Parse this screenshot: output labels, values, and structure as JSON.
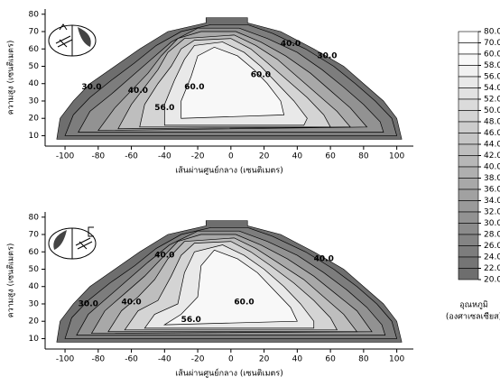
{
  "chart_data": [
    {
      "type": "contour",
      "x_label": "เส้นผ่านศูนย์กลาง (เซนติเมตร)",
      "y_label": "ความสูง (เซนติเมตร)",
      "xlim": [
        -112,
        110
      ],
      "ylim": [
        4,
        83
      ],
      "xticks": [
        -100,
        -80,
        -60,
        -40,
        -20,
        0,
        20,
        40,
        60,
        80,
        100
      ],
      "yticks": [
        10,
        20,
        30,
        40,
        50,
        60,
        70,
        80
      ],
      "boundary": [
        [
          -105,
          8
        ],
        [
          -103,
          20
        ],
        [
          -95,
          30
        ],
        [
          -85,
          40
        ],
        [
          -70,
          50
        ],
        [
          -55,
          60
        ],
        [
          -38,
          70
        ],
        [
          -15,
          75
        ],
        [
          -15,
          78
        ],
        [
          10,
          78
        ],
        [
          10,
          75
        ],
        [
          30,
          70
        ],
        [
          50,
          60
        ],
        [
          68,
          50
        ],
        [
          80,
          40
        ],
        [
          92,
          30
        ],
        [
          100,
          20
        ],
        [
          103,
          8
        ]
      ],
      "contours": [
        {
          "level": 24,
          "points": [
            [
              -100,
              10
            ],
            [
              -95,
              22
            ],
            [
              -85,
              32
            ],
            [
              -72,
              42
            ],
            [
              -58,
              52
            ],
            [
              -45,
              62
            ],
            [
              -30,
              70
            ],
            [
              -12,
              74
            ],
            [
              10,
              74
            ],
            [
              25,
              69
            ],
            [
              45,
              60
            ],
            [
              62,
              50
            ],
            [
              75,
              40
            ],
            [
              87,
              30
            ],
            [
              97,
              20
            ],
            [
              100,
              10
            ]
          ]
        },
        {
          "level": 30,
          "points": [
            [
              -92,
              12
            ],
            [
              -85,
              24
            ],
            [
              -72,
              34
            ],
            [
              -60,
              44
            ],
            [
              -48,
              54
            ],
            [
              -36,
              64
            ],
            [
              -20,
              72
            ],
            [
              5,
              72
            ],
            [
              22,
              66
            ],
            [
              40,
              58
            ],
            [
              55,
              48
            ],
            [
              68,
              38
            ],
            [
              80,
              28
            ],
            [
              90,
              18
            ],
            [
              92,
              12
            ]
          ]
        },
        {
          "level": 36,
          "points": [
            [
              -80,
              13
            ],
            [
              -70,
              26
            ],
            [
              -60,
              36
            ],
            [
              -50,
              46
            ],
            [
              -42,
              56
            ],
            [
              -32,
              66
            ],
            [
              -18,
              70
            ],
            [
              3,
              70
            ],
            [
              18,
              64
            ],
            [
              33,
              56
            ],
            [
              48,
              46
            ],
            [
              60,
              36
            ],
            [
              72,
              26
            ],
            [
              82,
              15
            ]
          ]
        },
        {
          "level": 42,
          "points": [
            [
              -68,
              14
            ],
            [
              -60,
              28
            ],
            [
              -52,
              38
            ],
            [
              -44,
              48
            ],
            [
              -38,
              58
            ],
            [
              -28,
              66
            ],
            [
              2,
              68
            ],
            [
              15,
              62
            ],
            [
              28,
              54
            ],
            [
              40,
              44
            ],
            [
              52,
              34
            ],
            [
              64,
              24
            ],
            [
              72,
              15
            ]
          ]
        },
        {
          "level": 48,
          "points": [
            [
              -55,
              15
            ],
            [
              -52,
              28
            ],
            [
              -44,
              40
            ],
            [
              -36,
              50
            ],
            [
              -30,
              60
            ],
            [
              -22,
              65
            ],
            [
              0,
              66
            ],
            [
              12,
              60
            ],
            [
              22,
              52
            ],
            [
              34,
              42
            ],
            [
              46,
              32
            ],
            [
              56,
              22
            ],
            [
              60,
              15
            ]
          ]
        },
        {
          "level": 54,
          "points": [
            [
              -40,
              16
            ],
            [
              -40,
              28
            ],
            [
              -34,
              42
            ],
            [
              -28,
              54
            ],
            [
              -22,
              62
            ],
            [
              -5,
              64
            ],
            [
              8,
              58
            ],
            [
              18,
              50
            ],
            [
              28,
              40
            ],
            [
              38,
              30
            ],
            [
              46,
              20
            ],
            [
              44,
              16
            ]
          ]
        },
        {
          "level": 58,
          "points": [
            [
              -30,
              20
            ],
            [
              -30,
              30
            ],
            [
              -24,
              44
            ],
            [
              -20,
              56
            ],
            [
              -10,
              61
            ],
            [
              4,
              56
            ],
            [
              14,
              48
            ],
            [
              22,
              40
            ],
            [
              30,
              30
            ],
            [
              32,
              22
            ]
          ]
        }
      ],
      "contour_labels": [
        {
          "value": 60,
          "label": "60.0",
          "x": -22,
          "y": 38
        },
        {
          "value": 60,
          "label": "60.0",
          "x": 18,
          "y": 45
        },
        {
          "value": 56,
          "label": "56.0",
          "x": -40,
          "y": 26
        },
        {
          "value": 40,
          "label": "40.0",
          "x": -56,
          "y": 36
        },
        {
          "value": 30,
          "label": "30.0",
          "x": -84,
          "y": 38
        },
        {
          "value": 40,
          "label": "40.0",
          "x": 36,
          "y": 63
        },
        {
          "value": 30,
          "label": "30.0",
          "x": 58,
          "y": 56
        }
      ]
    },
    {
      "type": "contour",
      "x_label": "เส้นผ่านศูนย์กลาง (เซนติเมตร)",
      "y_label": "ความสูง (เซนติเมตร)",
      "xlim": [
        -112,
        110
      ],
      "ylim": [
        4,
        83
      ],
      "xticks": [
        -100,
        -80,
        -60,
        -40,
        -20,
        0,
        20,
        40,
        60,
        80,
        100
      ],
      "yticks": [
        10,
        20,
        30,
        40,
        50,
        60,
        70,
        80
      ],
      "boundary": [
        [
          -105,
          8
        ],
        [
          -103,
          20
        ],
        [
          -95,
          30
        ],
        [
          -85,
          40
        ],
        [
          -70,
          50
        ],
        [
          -55,
          60
        ],
        [
          -38,
          70
        ],
        [
          -15,
          75
        ],
        [
          -15,
          78
        ],
        [
          10,
          78
        ],
        [
          10,
          75
        ],
        [
          30,
          70
        ],
        [
          50,
          60
        ],
        [
          68,
          50
        ],
        [
          80,
          40
        ],
        [
          92,
          30
        ],
        [
          100,
          20
        ],
        [
          103,
          8
        ]
      ],
      "contours": [
        {
          "level": 24,
          "points": [
            [
              -100,
              10
            ],
            [
              -96,
              22
            ],
            [
              -86,
              32
            ],
            [
              -73,
              42
            ],
            [
              -58,
              52
            ],
            [
              -45,
              62
            ],
            [
              -30,
              70
            ],
            [
              -12,
              74
            ],
            [
              10,
              74
            ],
            [
              25,
              69
            ],
            [
              45,
              60
            ],
            [
              62,
              50
            ],
            [
              76,
              40
            ],
            [
              88,
              30
            ],
            [
              97,
              20
            ],
            [
              100,
              10
            ]
          ]
        },
        {
          "level": 30,
          "points": [
            [
              -93,
              12
            ],
            [
              -86,
              24
            ],
            [
              -74,
              34
            ],
            [
              -62,
              44
            ],
            [
              -50,
              54
            ],
            [
              -37,
              64
            ],
            [
              -20,
              72
            ],
            [
              5,
              72
            ],
            [
              22,
              66
            ],
            [
              40,
              58
            ],
            [
              56,
              48
            ],
            [
              70,
              38
            ],
            [
              82,
              28
            ],
            [
              91,
              18
            ],
            [
              93,
              12
            ]
          ]
        },
        {
          "level": 36,
          "points": [
            [
              -84,
              13
            ],
            [
              -76,
              26
            ],
            [
              -64,
              36
            ],
            [
              -52,
              46
            ],
            [
              -42,
              56
            ],
            [
              -32,
              66
            ],
            [
              -18,
              70
            ],
            [
              3,
              70
            ],
            [
              18,
              64
            ],
            [
              34,
              56
            ],
            [
              50,
              46
            ],
            [
              63,
              36
            ],
            [
              76,
              26
            ],
            [
              85,
              14
            ]
          ]
        },
        {
          "level": 42,
          "points": [
            [
              -74,
              14
            ],
            [
              -66,
              26
            ],
            [
              -56,
              34
            ],
            [
              -46,
              44
            ],
            [
              -38,
              56
            ],
            [
              -28,
              66
            ],
            [
              2,
              68
            ],
            [
              15,
              62
            ],
            [
              28,
              54
            ],
            [
              44,
              44
            ],
            [
              56,
              34
            ],
            [
              68,
              24
            ],
            [
              76,
              14
            ]
          ]
        },
        {
          "level": 48,
          "points": [
            [
              -64,
              15
            ],
            [
              -56,
              26
            ],
            [
              -44,
              32
            ],
            [
              -36,
              46
            ],
            [
              -30,
              58
            ],
            [
              -22,
              65
            ],
            [
              0,
              66
            ],
            [
              12,
              60
            ],
            [
              24,
              52
            ],
            [
              38,
              42
            ],
            [
              50,
              32
            ],
            [
              60,
              22
            ],
            [
              64,
              15
            ]
          ]
        },
        {
          "level": 54,
          "points": [
            [
              -52,
              16
            ],
            [
              -46,
              24
            ],
            [
              -32,
              30
            ],
            [
              -28,
              48
            ],
            [
              -22,
              60
            ],
            [
              -5,
              64
            ],
            [
              8,
              58
            ],
            [
              20,
              50
            ],
            [
              32,
              40
            ],
            [
              42,
              30
            ],
            [
              50,
              20
            ],
            [
              50,
              16
            ]
          ]
        },
        {
          "level": 58,
          "points": [
            [
              -40,
              18
            ],
            [
              -30,
              24
            ],
            [
              -20,
              34
            ],
            [
              -18,
              52
            ],
            [
              -10,
              61
            ],
            [
              4,
              56
            ],
            [
              16,
              48
            ],
            [
              26,
              38
            ],
            [
              36,
              28
            ],
            [
              40,
              20
            ]
          ]
        }
      ],
      "contour_labels": [
        {
          "value": 60,
          "label": "60.0",
          "x": 8,
          "y": 31
        },
        {
          "value": 56,
          "label": "56.0",
          "x": -24,
          "y": 21
        },
        {
          "value": 40,
          "label": "40.0",
          "x": -60,
          "y": 31
        },
        {
          "value": 30,
          "label": "30.0",
          "x": -86,
          "y": 30
        },
        {
          "value": 40,
          "label": "40.0",
          "x": -40,
          "y": 58
        },
        {
          "value": 40,
          "label": "40.0",
          "x": 56,
          "y": 56
        }
      ]
    }
  ],
  "colorbar": {
    "title": [
      "อุณหภูมิ",
      "(องศาเซลเซียส)"
    ],
    "ticks": [
      {
        "value": 80,
        "label": "80.0"
      },
      {
        "value": 70,
        "label": "70.0"
      },
      {
        "value": 60,
        "label": "60.0"
      },
      {
        "value": 58,
        "label": "58.0"
      },
      {
        "value": 56,
        "label": "56.0"
      },
      {
        "value": 54,
        "label": "54.0"
      },
      {
        "value": 52,
        "label": "52.0"
      },
      {
        "value": 50,
        "label": "50.0"
      },
      {
        "value": 48,
        "label": "48.0"
      },
      {
        "value": 46,
        "label": "46.0"
      },
      {
        "value": 44,
        "label": "44.0"
      },
      {
        "value": 42,
        "label": "42.0"
      },
      {
        "value": 40,
        "label": "40.0"
      },
      {
        "value": 38,
        "label": "38.0"
      },
      {
        "value": 36,
        "label": "36.0"
      },
      {
        "value": 34,
        "label": "34.0"
      },
      {
        "value": 32,
        "label": "32.0"
      },
      {
        "value": 30,
        "label": "30.0"
      },
      {
        "value": 28,
        "label": "28.0"
      },
      {
        "value": 26,
        "label": "26.0"
      },
      {
        "value": 24,
        "label": "24.0"
      },
      {
        "value": 22,
        "label": "22.0"
      },
      {
        "value": 20,
        "label": "20.0"
      }
    ]
  }
}
